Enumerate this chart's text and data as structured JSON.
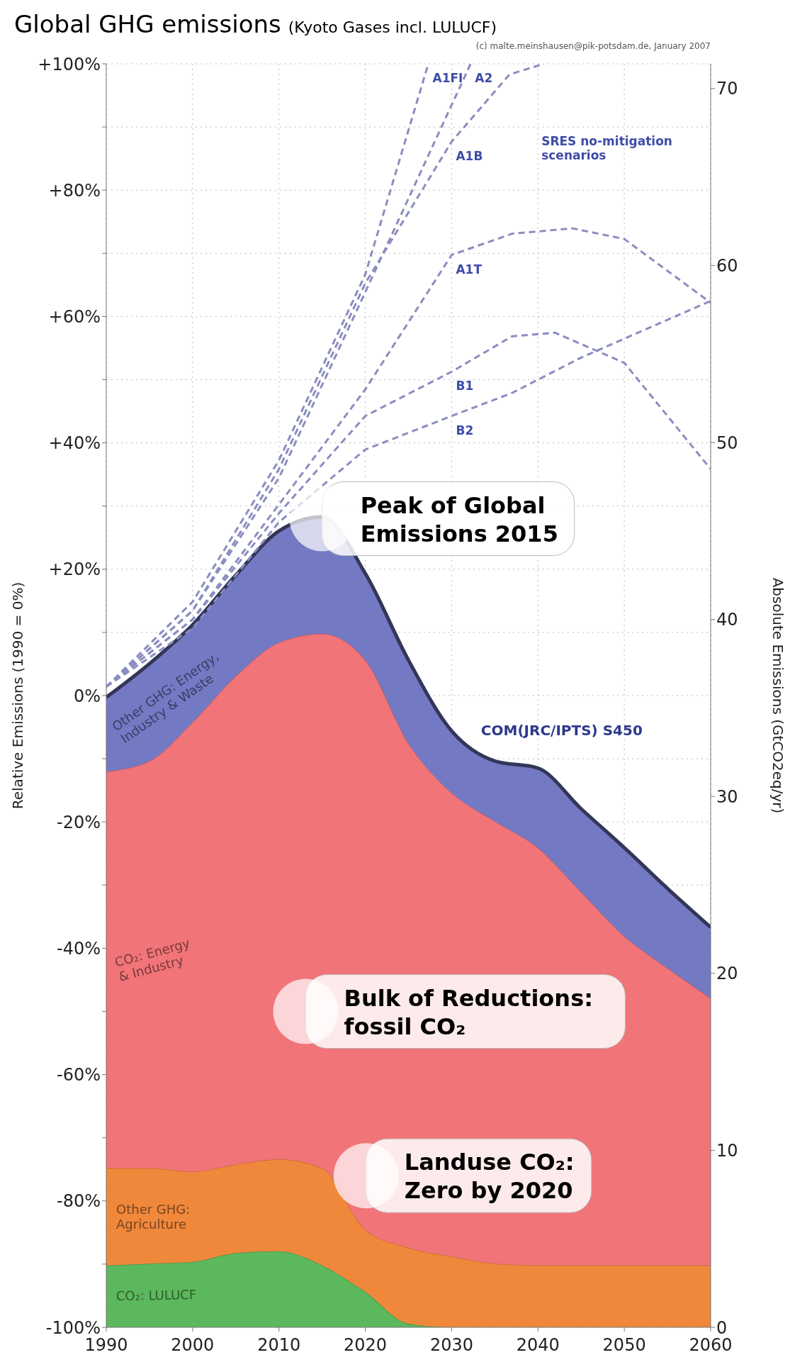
{
  "chart_data": {
    "type": "area",
    "title": "Global GHG emissions",
    "subtitle": "(Kyoto Gases incl. LULUCF)",
    "ylabel": "Relative Emissions (1990 = 0%)",
    "y2label": "Absolute Emissions (GtCO2eq/yr)",
    "stacked": true,
    "grid": true,
    "x": [
      1990,
      1995,
      2000,
      2005,
      2010,
      2015,
      2020,
      2025,
      2030,
      2035,
      2040,
      2045,
      2050,
      2055,
      2060
    ],
    "xlim": [
      1990,
      2060
    ],
    "xticks": [
      1990,
      2000,
      2010,
      2020,
      2030,
      2040,
      2050,
      2060
    ],
    "ylim": [
      -100,
      100
    ],
    "yticks": [
      {
        "value": -100,
        "label": "-100%"
      },
      {
        "value": -90,
        "label": null
      },
      {
        "value": -80,
        "label": "-80%"
      },
      {
        "value": -70,
        "label": null
      },
      {
        "value": -60,
        "label": "-60%"
      },
      {
        "value": -50,
        "label": null
      },
      {
        "value": -40,
        "label": "-40%"
      },
      {
        "value": -30,
        "label": null
      },
      {
        "value": -20,
        "label": "-20%"
      },
      {
        "value": -10,
        "label": null
      },
      {
        "value": 0,
        "label": "0%"
      },
      {
        "value": 10,
        "label": null
      },
      {
        "value": 20,
        "label": "+20%"
      },
      {
        "value": 30,
        "label": null
      },
      {
        "value": 40,
        "label": "+40%"
      },
      {
        "value": 50,
        "label": null
      },
      {
        "value": 60,
        "label": "+60%"
      },
      {
        "value": 70,
        "label": null
      },
      {
        "value": 80,
        "label": "+80%"
      },
      {
        "value": 90,
        "label": null
      },
      {
        "value": 100,
        "label": "+100%"
      }
    ],
    "y2lim": [
      0,
      71.4
    ],
    "y2ticks": [
      0,
      10,
      20,
      30,
      40,
      50,
      60,
      70
    ],
    "series": [
      {
        "name": "CO₂: LULUCF",
        "color": "#5cb85c",
        "axis": "y2",
        "values": [
          3.5,
          3.6,
          3.7,
          4.2,
          4.3,
          3.5,
          2.0,
          0.2,
          0,
          0,
          0,
          0,
          0,
          0,
          0
        ]
      },
      {
        "name": "Other GHG: Agriculture",
        "color": "#f0883c",
        "axis": "y2",
        "values": [
          5.5,
          5.4,
          5.1,
          5.0,
          5.2,
          5.5,
          3.5,
          4.3,
          4.0,
          3.6,
          3.5,
          3.5,
          3.5,
          3.5,
          3.5
        ]
      },
      {
        "name": "CO₂: Energy & Industry",
        "color": "#f07478",
        "axis": "y2",
        "values": [
          22.4,
          23.0,
          25.4,
          27.6,
          29.2,
          30.2,
          32.2,
          28.5,
          26.2,
          25.0,
          23.6,
          21.1,
          18.6,
          16.8,
          15.1
        ]
      },
      {
        "name": "Other GHG: Energy, Industry & Waste",
        "color": "#7479c4",
        "axis": "y2",
        "values": [
          4.2,
          5.5,
          5.5,
          5.7,
          6.3,
          6.6,
          4.9,
          4.7,
          3.5,
          3.4,
          4.5,
          4.7,
          5.0,
          4.5,
          4.0
        ]
      },
      {
        "name": "A1FI",
        "type": "line",
        "line_style": "dashed",
        "color": "#8a8dbf",
        "axis": "y2",
        "x": [
          1990,
          2000,
          2010,
          2020,
          2027.3
        ],
        "values": [
          36.2,
          41,
          49,
          59.5,
          71.4
        ]
      },
      {
        "name": "A2",
        "type": "line",
        "line_style": "dashed",
        "color": "#8a8dbf",
        "axis": "y2",
        "x": [
          1990,
          2000,
          2010,
          2020,
          2032.2
        ],
        "values": [
          36.2,
          40.5,
          48,
          58.5,
          71.4
        ]
      },
      {
        "name": "A1B",
        "type": "line",
        "line_style": "dashed",
        "color": "#8a8dbf",
        "axis": "y2",
        "x": [
          1990,
          2000,
          2010,
          2020,
          2030,
          2036.7,
          2040.7
        ],
        "values": [
          36.2,
          40.5,
          48.5,
          59,
          67,
          70.8,
          71.4
        ]
      },
      {
        "name": "A1T",
        "type": "line",
        "line_style": "dashed",
        "color": "#8a8dbf",
        "axis": "y2",
        "x": [
          1990,
          2000,
          2010,
          2020,
          2030,
          2037,
          2044,
          2050,
          2060
        ],
        "values": [
          36.2,
          40,
          46.5,
          53,
          60.6,
          61.8,
          62.1,
          61.5,
          57.9
        ]
      },
      {
        "name": "B1",
        "type": "line",
        "line_style": "dashed",
        "color": "#8a8dbf",
        "axis": "y2",
        "x": [
          1990,
          2000,
          2010,
          2020,
          2030,
          2037,
          2042,
          2050,
          2060
        ],
        "values": [
          36.2,
          40,
          46,
          51.5,
          54,
          56,
          56.2,
          54.5,
          48.5
        ]
      },
      {
        "name": "B2",
        "type": "line",
        "line_style": "dashed",
        "color": "#8a8dbf",
        "axis": "y2",
        "x": [
          1990,
          2000,
          2010,
          2020,
          2030,
          2037,
          2045,
          2060
        ],
        "values": [
          36.2,
          39.5,
          45.5,
          49.6,
          51.5,
          52.8,
          54.8,
          58
        ]
      }
    ],
    "annotations": [
      {
        "text": "Peak of Global Emissions 2015",
        "x": 2015,
        "y": 28
      },
      "Bulk of Reductions: fossil CO₂",
      "Landuse CO₂: Zero by 2020",
      "SRES no-mitigation scenarios",
      "COM(JRC/IPTS) S450",
      "(c) malte.meinshausen@pik-potsdam.de, January 2007"
    ]
  }
}
